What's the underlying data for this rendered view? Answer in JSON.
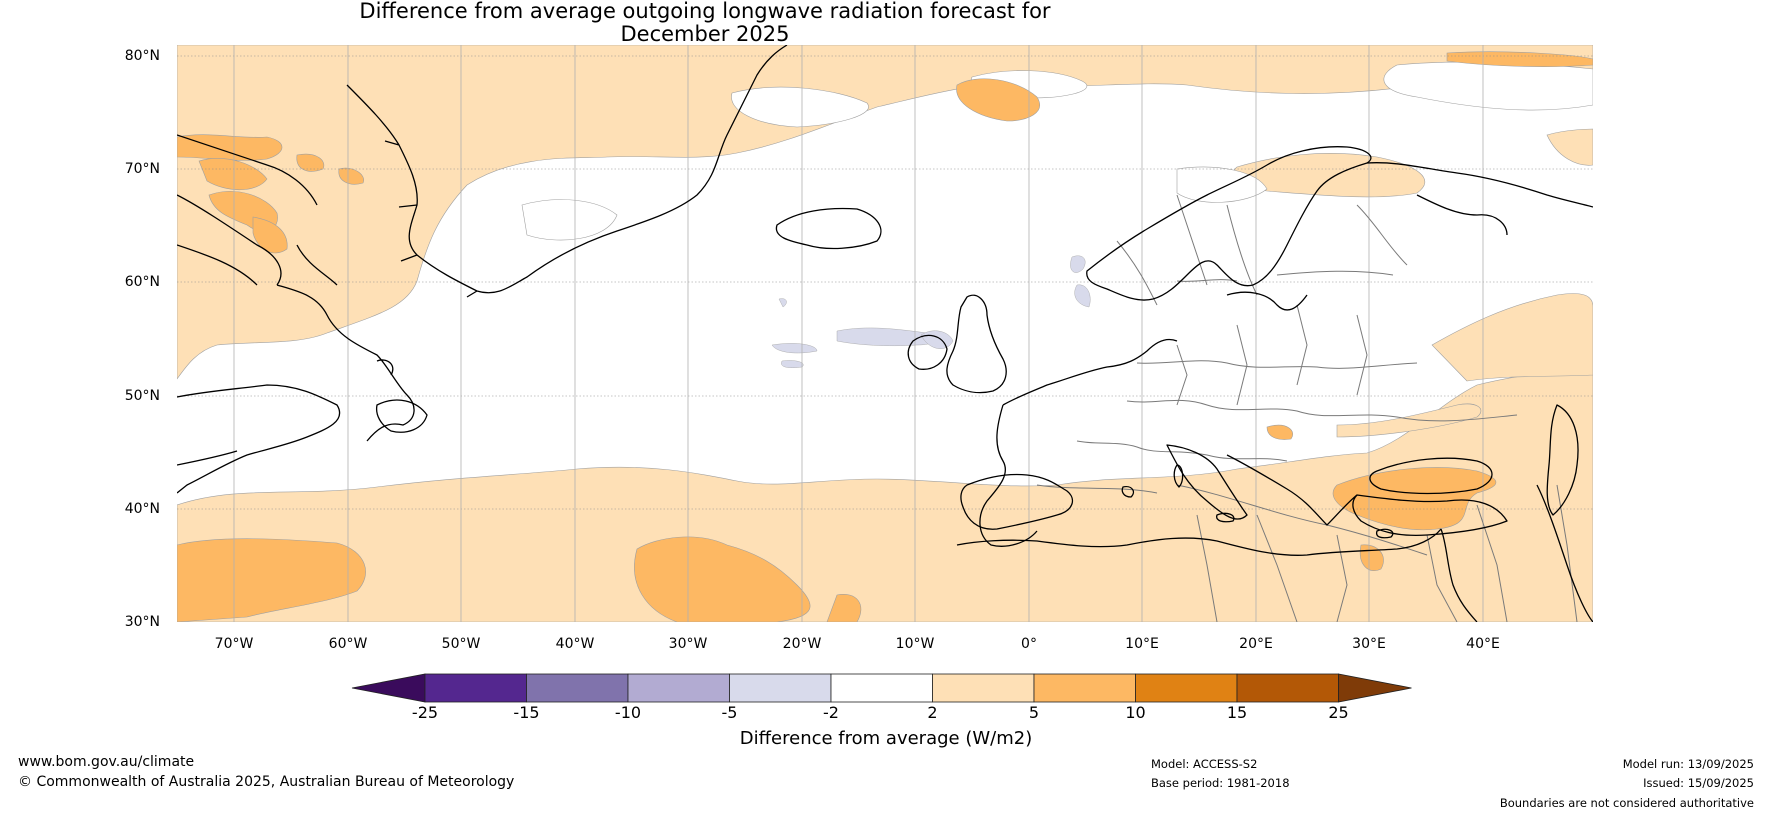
{
  "title": {
    "line1": "Difference from average outgoing longwave radiation forecast for",
    "line2": "December 2025"
  },
  "map": {
    "lat_labels": [
      "80°N",
      "70°N",
      "60°N",
      "50°N",
      "40°N",
      "30°N"
    ],
    "lon_labels": [
      "70°W",
      "60°W",
      "50°W",
      "40°W",
      "30°W",
      "20°W",
      "10°W",
      "0°",
      "10°E",
      "20°E",
      "30°E",
      "40°E"
    ],
    "lat_range": [
      30,
      81
    ],
    "lon_range": [
      -75,
      50
    ],
    "projection": "plate-carree",
    "gridlines": "dotted"
  },
  "colorbar": {
    "tick_labels": [
      "-25",
      "-15",
      "-10",
      "-5",
      "-2",
      "2",
      "5",
      "10",
      "15",
      "25"
    ],
    "bins": [
      {
        "from": null,
        "to": -25,
        "color": "#3a0b5c"
      },
      {
        "from": -25,
        "to": -15,
        "color": "#54278f"
      },
      {
        "from": -15,
        "to": -10,
        "color": "#8073ac"
      },
      {
        "from": -10,
        "to": -5,
        "color": "#b2abd2"
      },
      {
        "from": -5,
        "to": -2,
        "color": "#d8daeb"
      },
      {
        "from": -2,
        "to": 2,
        "color": "#ffffff"
      },
      {
        "from": 2,
        "to": 5,
        "color": "#fee0b6"
      },
      {
        "from": 5,
        "to": 10,
        "color": "#fdb863"
      },
      {
        "from": 10,
        "to": 15,
        "color": "#e08214"
      },
      {
        "from": 15,
        "to": 25,
        "color": "#b35806"
      },
      {
        "from": 25,
        "to": null,
        "color": "#7f3b08"
      }
    ],
    "label": "Difference from average (W/m2)"
  },
  "footer": {
    "website": "www.bom.gov.au/climate",
    "copyright": "© Commonwealth of Australia 2025, Australian Bureau of Meteorology",
    "model": "Model: ACCESS-S2",
    "base_period": "Base period: 1981-2018",
    "model_run": "Model run: 13/09/2025",
    "issued": "Issued: 15/09/2025",
    "disclaimer": "Boundaries are not considered authoritative"
  },
  "colors": {
    "anomaly_2_5": "#fee0b6",
    "anomaly_5_10": "#fdb863",
    "anomaly_neg_2_5": "#d8daeb",
    "coastline": "#000000",
    "borders": "#7a7a7a"
  }
}
